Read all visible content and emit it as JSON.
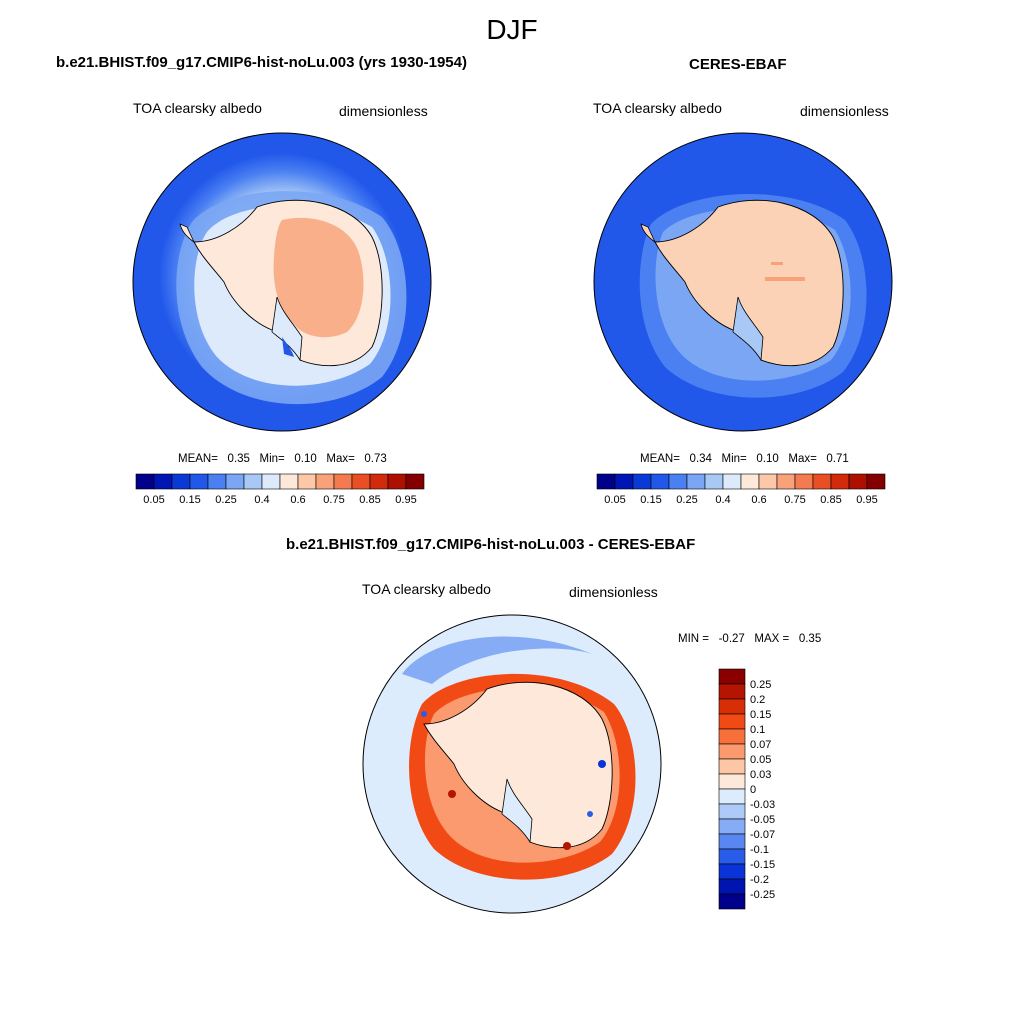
{
  "figure": {
    "season": "DJF"
  },
  "panels": [
    {
      "title": "b.e21.BHIST.f09_g17.CMIP6-hist-noLu.003 (yrs 1930-1954)",
      "variable": "TOA clearsky albedo",
      "units": "dimensionless",
      "stats": {
        "mean_label": "MEAN=",
        "mean": "0.35",
        "min_label": "Min=",
        "min": "0.10",
        "max_label": "Max=",
        "max": "0.73"
      }
    },
    {
      "title": "CERES-EBAF",
      "variable": "TOA clearsky albedo",
      "units": "dimensionless",
      "stats": {
        "mean_label": "MEAN=",
        "mean": "0.34",
        "min_label": "Min=",
        "min": "0.10",
        "max_label": "Max=",
        "max": "0.71"
      }
    },
    {
      "title": "b.e21.BHIST.f09_g17.CMIP6-hist-noLu.003 - CERES-EBAF",
      "variable": "TOA clearsky albedo",
      "units": "dimensionless",
      "stats": {
        "min_label": "MIN =",
        "min": "-0.27",
        "max_label": "MAX =",
        "max": "0.35"
      }
    }
  ],
  "colorbars": {
    "absolute": {
      "colors": [
        "#00008a",
        "#0016b4",
        "#0a3ad6",
        "#2258ea",
        "#4a80f2",
        "#7aa6f4",
        "#a8c8f6",
        "#dceafc",
        "#fde8da",
        "#fcc8a8",
        "#f9a27a",
        "#f47a50",
        "#ea4e24",
        "#d42a0c",
        "#ae1000",
        "#840000"
      ],
      "tick_labels": [
        "0.05",
        "0.15",
        "0.25",
        "0.4",
        "0.6",
        "0.75",
        "0.85",
        "0.95"
      ]
    },
    "difference": {
      "colors_top_to_bottom": [
        "#8a0000",
        "#b41400",
        "#d82e06",
        "#f24a14",
        "#f7703a",
        "#fa9a6e",
        "#fdc6a4",
        "#fde8da",
        "#dcecfc",
        "#aecaf8",
        "#86acf6",
        "#5a86f2",
        "#2a5cea",
        "#0a34d8",
        "#0014b0",
        "#00008a"
      ],
      "tick_labels_top_to_bottom": [
        "0.25",
        "0.2",
        "0.15",
        "0.1",
        "0.07",
        "0.05",
        "0.03",
        "0",
        "-0.03",
        "-0.05",
        "-0.07",
        "-0.1",
        "-0.15",
        "-0.2",
        "-0.25"
      ]
    }
  }
}
